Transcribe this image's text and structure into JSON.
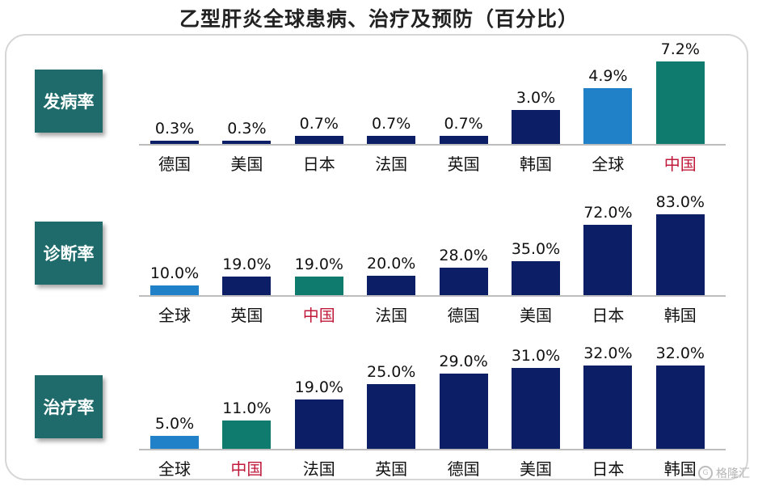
{
  "title": "乙型肝炎全球患病、治疗及预防（百分比）",
  "colors": {
    "dark_navy": "#0c1f66",
    "global_blue": "#2080c8",
    "china_teal": "#0e7b6e",
    "label_box": "#1f6b6b",
    "highlight_text": "#c0193a"
  },
  "watermark": {
    "text": "格隆汇",
    "icon": "g-logo-icon"
  },
  "chart_data": [
    {
      "type": "bar",
      "title": "发病率",
      "categories": [
        "德国",
        "美国",
        "日本",
        "法国",
        "英国",
        "韩国",
        "全球",
        "中国"
      ],
      "values": [
        0.3,
        0.3,
        0.7,
        0.7,
        0.7,
        3.0,
        4.9,
        7.2
      ],
      "labels": [
        "0.3%",
        "0.3%",
        "0.7%",
        "0.7%",
        "0.7%",
        "3.0%",
        "4.9%",
        "7.2%"
      ],
      "bar_colors": [
        "#0c1f66",
        "#0c1f66",
        "#0c1f66",
        "#0c1f66",
        "#0c1f66",
        "#0c1f66",
        "#2080c8",
        "#0e7b6e"
      ],
      "highlight_categories": [
        "中国"
      ],
      "ylim": [
        0,
        7.2
      ]
    },
    {
      "type": "bar",
      "title": "诊断率",
      "categories": [
        "全球",
        "英国",
        "中国",
        "法国",
        "德国",
        "美国",
        "日本",
        "韩国"
      ],
      "values": [
        10.0,
        19.0,
        19.0,
        20.0,
        28.0,
        35.0,
        72.0,
        83.0
      ],
      "labels": [
        "10.0%",
        "19.0%",
        "19.0%",
        "20.0%",
        "28.0%",
        "35.0%",
        "72.0%",
        "83.0%"
      ],
      "bar_colors": [
        "#2080c8",
        "#0c1f66",
        "#0e7b6e",
        "#0c1f66",
        "#0c1f66",
        "#0c1f66",
        "#0c1f66",
        "#0c1f66"
      ],
      "highlight_categories": [
        "中国"
      ],
      "ylim": [
        0,
        83
      ]
    },
    {
      "type": "bar",
      "title": "治疗率",
      "categories": [
        "全球",
        "中国",
        "法国",
        "英国",
        "德国",
        "美国",
        "日本",
        "韩国"
      ],
      "values": [
        5.0,
        11.0,
        19.0,
        25.0,
        29.0,
        31.0,
        32.0,
        32.0
      ],
      "labels": [
        "5.0%",
        "11.0%",
        "19.0%",
        "25.0%",
        "29.0%",
        "31.0%",
        "32.0%",
        "32.0%"
      ],
      "bar_colors": [
        "#2080c8",
        "#0e7b6e",
        "#0c1f66",
        "#0c1f66",
        "#0c1f66",
        "#0c1f66",
        "#0c1f66",
        "#0c1f66"
      ],
      "highlight_categories": [
        "中国"
      ],
      "ylim": [
        0,
        32
      ]
    }
  ]
}
